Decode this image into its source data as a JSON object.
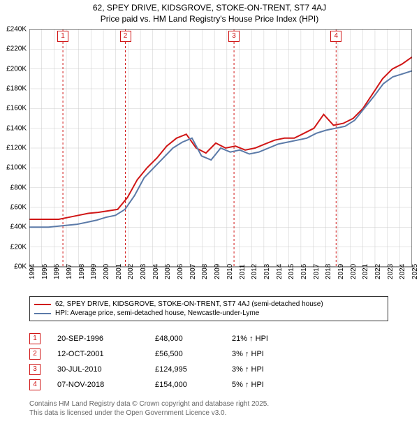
{
  "title_line1": "62, SPEY DRIVE, KIDSGROVE, STOKE-ON-TRENT, ST7 4AJ",
  "title_line2": "Price paid vs. HM Land Registry's House Price Index (HPI)",
  "chart": {
    "type": "line",
    "background_color": "#ffffff",
    "grid_color": "#cccccc",
    "axis_color": "#333333",
    "x_years": [
      "1994",
      "1995",
      "1996",
      "1997",
      "1998",
      "1999",
      "2000",
      "2001",
      "2002",
      "2003",
      "2004",
      "2005",
      "2006",
      "2007",
      "2008",
      "2009",
      "2010",
      "2011",
      "2012",
      "2013",
      "2014",
      "2015",
      "2016",
      "2017",
      "2018",
      "2019",
      "2020",
      "2021",
      "2022",
      "2023",
      "2024",
      "2025"
    ],
    "y_ticks_k": [
      0,
      20,
      40,
      60,
      80,
      100,
      120,
      140,
      160,
      180,
      200,
      220,
      240
    ],
    "ylim": [
      0,
      240
    ],
    "xlim": [
      1994,
      2025
    ],
    "series": [
      {
        "name": "property",
        "color": "#d01616",
        "width": 2,
        "data_k": [
          48,
          48,
          48,
          48,
          50,
          52,
          54,
          55,
          56.5,
          58,
          70,
          88,
          100,
          110,
          122,
          130,
          134,
          120,
          115,
          125,
          120,
          122,
          118,
          120,
          124,
          128,
          130,
          130,
          135,
          140,
          154,
          143,
          145,
          150,
          160,
          175,
          190,
          200,
          205,
          212
        ]
      },
      {
        "name": "hpi",
        "color": "#5b7aa8",
        "width": 2,
        "data_k": [
          40,
          40,
          40,
          41,
          42,
          43,
          45,
          47,
          50,
          52,
          58,
          72,
          90,
          100,
          110,
          120,
          126,
          130,
          112,
          108,
          120,
          116,
          118,
          114,
          116,
          120,
          124,
          126,
          128,
          130,
          135,
          138,
          140,
          142,
          148,
          160,
          172,
          185,
          192,
          195,
          198
        ]
      }
    ],
    "markers": [
      {
        "num": "1",
        "year": 1996.72,
        "color": "#d01616"
      },
      {
        "num": "2",
        "year": 2001.78,
        "color": "#d01616"
      },
      {
        "num": "3",
        "year": 2010.58,
        "color": "#d01616"
      },
      {
        "num": "4",
        "year": 2018.85,
        "color": "#d01616"
      }
    ],
    "label_fontsize": 10,
    "title_fontsize": 12
  },
  "legend": {
    "items": [
      {
        "color": "#d01616",
        "label": "62, SPEY DRIVE, KIDSGROVE, STOKE-ON-TRENT, ST7 4AJ (semi-detached house)"
      },
      {
        "color": "#5b7aa8",
        "label": "HPI: Average price, semi-detached house, Newcastle-under-Lyme"
      }
    ]
  },
  "table": {
    "rows": [
      {
        "num": "1",
        "color": "#d01616",
        "date": "20-SEP-1996",
        "price": "£48,000",
        "pct": "21% ↑ HPI"
      },
      {
        "num": "2",
        "color": "#d01616",
        "date": "12-OCT-2001",
        "price": "£56,500",
        "pct": "3% ↑ HPI"
      },
      {
        "num": "3",
        "color": "#d01616",
        "date": "30-JUL-2010",
        "price": "£124,995",
        "pct": "3% ↑ HPI"
      },
      {
        "num": "4",
        "color": "#d01616",
        "date": "07-NOV-2018",
        "price": "£154,000",
        "pct": "5% ↑ HPI"
      }
    ]
  },
  "footer_line1": "Contains HM Land Registry data © Crown copyright and database right 2025.",
  "footer_line2": "This data is licensed under the Open Government Licence v3.0."
}
